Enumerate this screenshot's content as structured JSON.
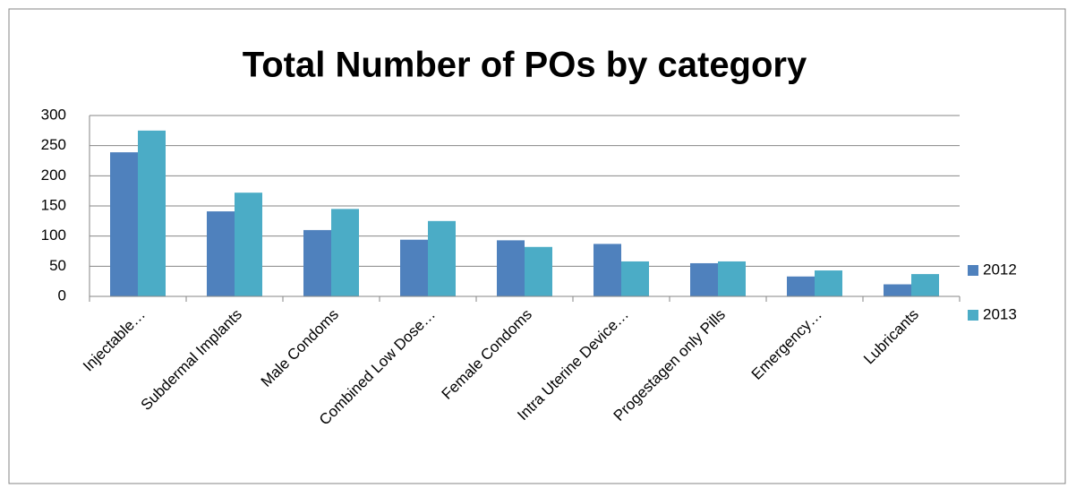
{
  "chart_data": {
    "type": "bar",
    "title": "Total Number of POs by category",
    "categories": [
      "Injectable…",
      "Subdermal Implants",
      "Male Condoms",
      "Combined Low Dose…",
      "Female Condoms",
      "Intra Uterine Device…",
      "Progestagen only Pills",
      "Emergency…",
      "Lubricants"
    ],
    "series": [
      {
        "name": "2012",
        "color": "#4f81bd",
        "values": [
          239,
          141,
          110,
          94,
          93,
          87,
          55,
          33,
          20
        ]
      },
      {
        "name": "2013",
        "color": "#4bacc6",
        "values": [
          275,
          172,
          145,
          125,
          82,
          58,
          58,
          43,
          37
        ]
      }
    ],
    "ylim": [
      0,
      300
    ],
    "yticks": [
      0,
      50,
      100,
      150,
      200,
      250,
      300
    ],
    "grid": true,
    "legend": "right"
  }
}
